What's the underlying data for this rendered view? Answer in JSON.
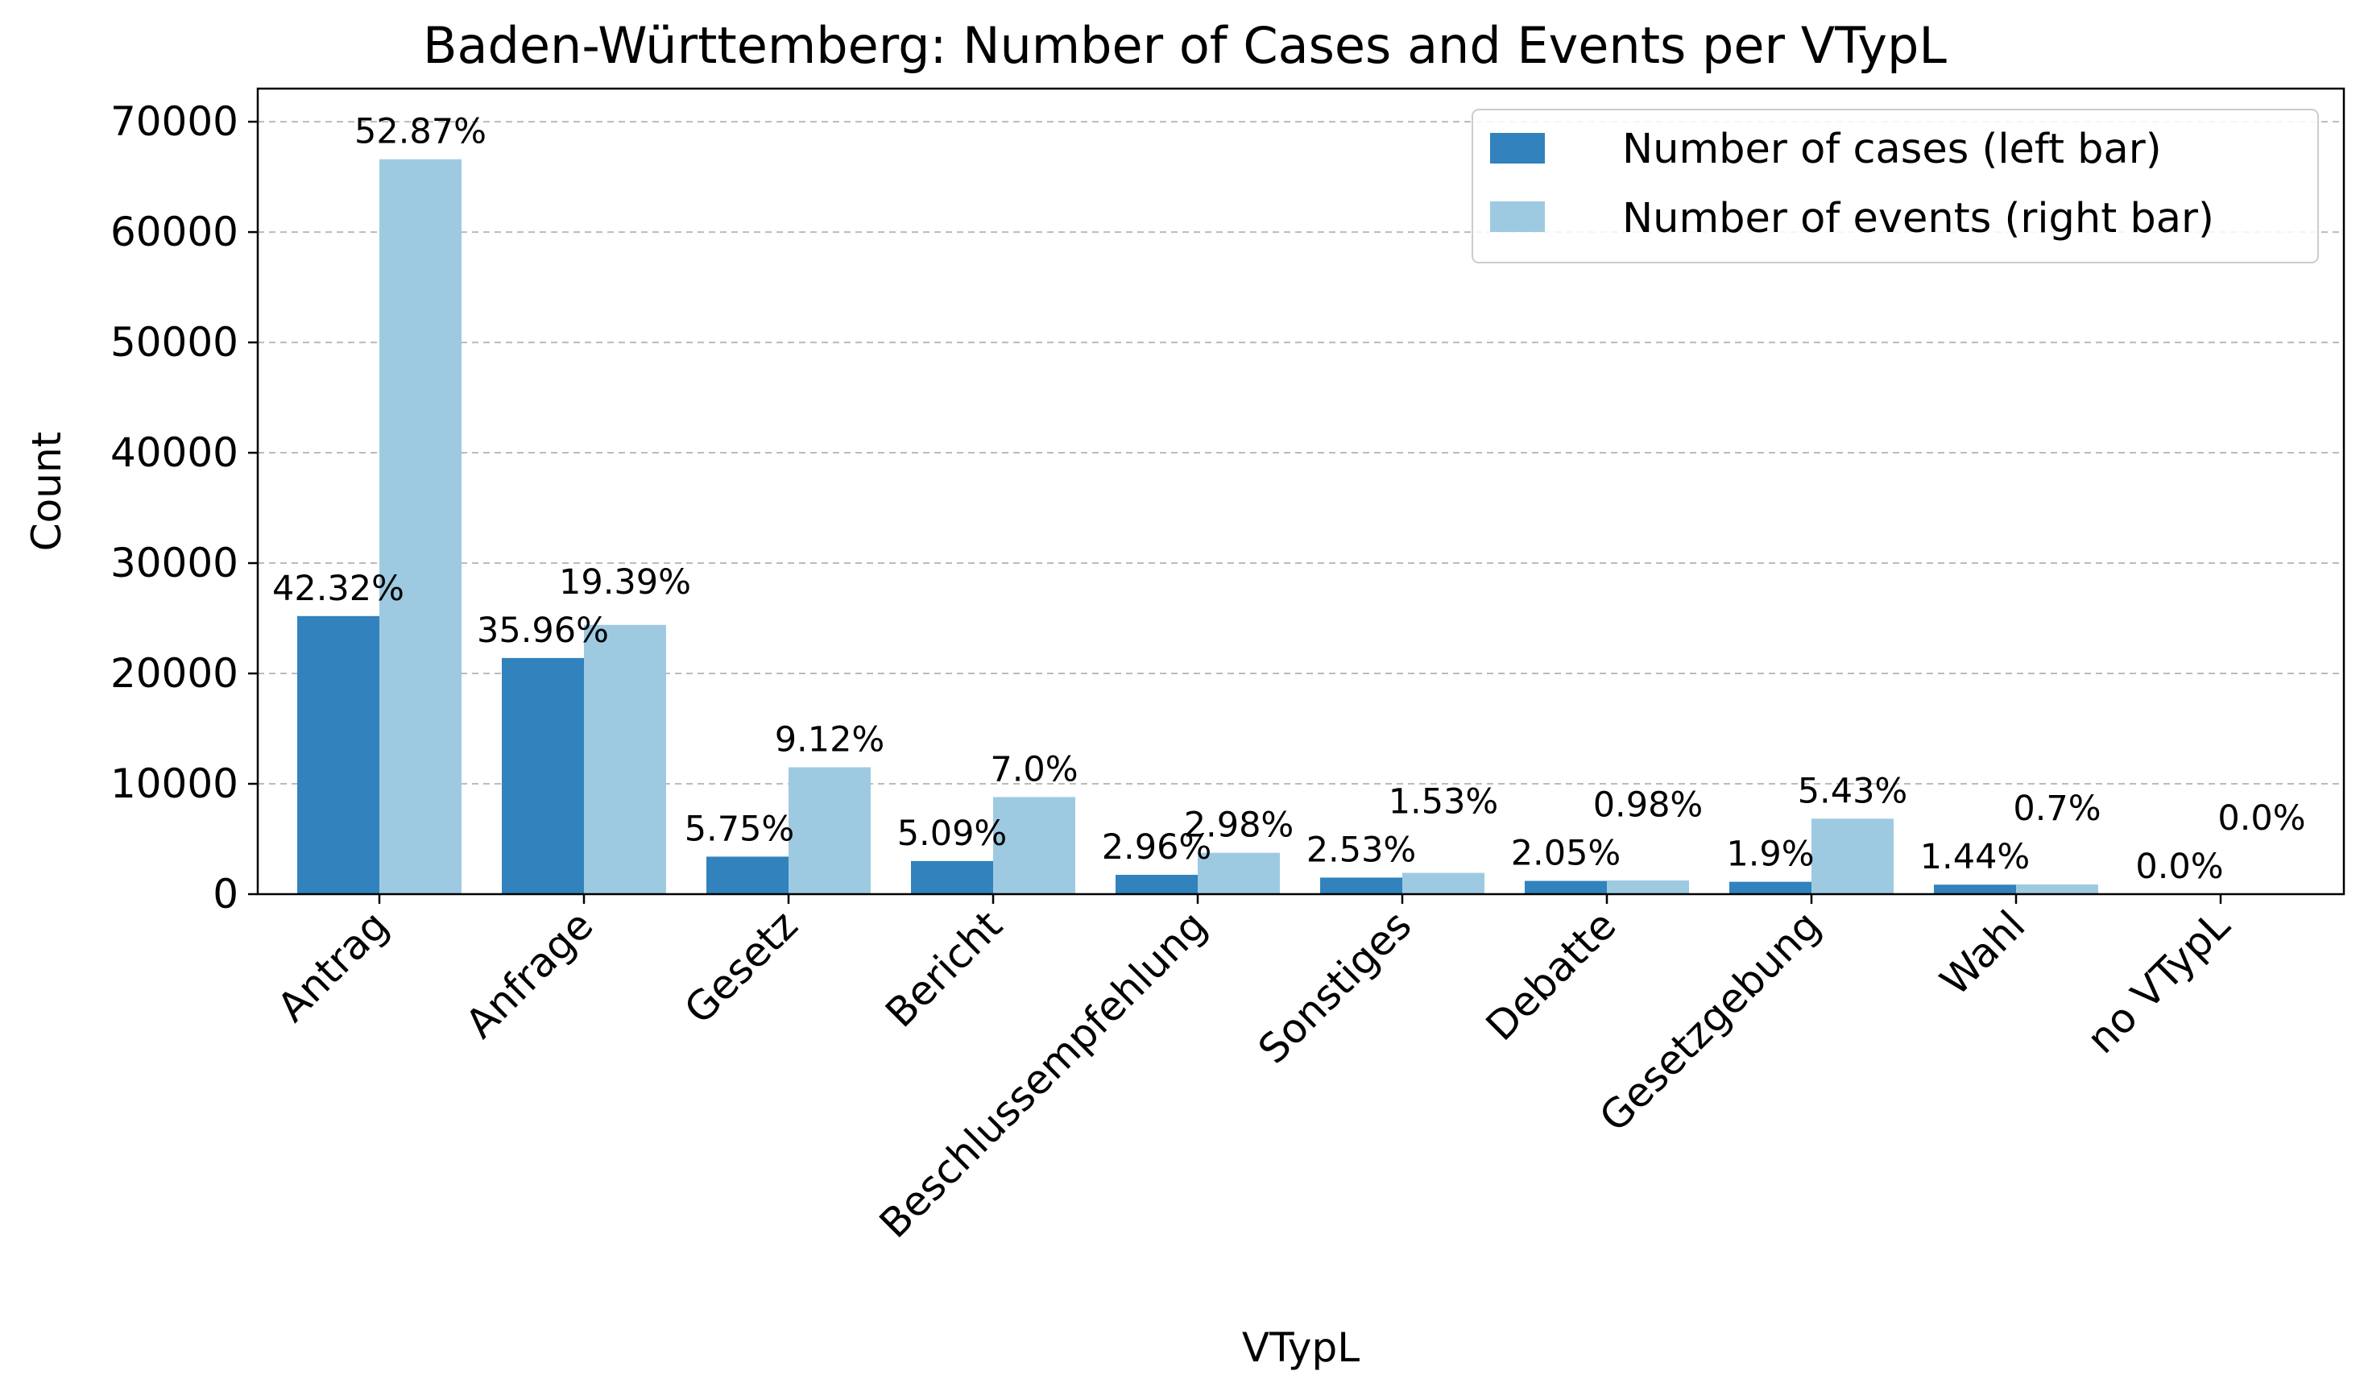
{
  "chart_data": {
    "type": "bar",
    "title": "Baden-Württemberg: Number of Cases and Events per VTypL",
    "xlabel": "VTypL",
    "ylabel": "Count",
    "ylim": [
      0,
      73000
    ],
    "yticks": [
      0,
      10000,
      20000,
      30000,
      40000,
      50000,
      60000,
      70000
    ],
    "grid": "y-dashed",
    "legend_position": "top-right",
    "categories": [
      "Antrag",
      "Anfrage",
      "Gesetz",
      "Bericht",
      "Beschlussempfehlung",
      "Sonstiges",
      "Debatte",
      "Gesetzgebung",
      "Wahl",
      "no VTypL"
    ],
    "series": [
      {
        "name": "Number of cases (left bar)",
        "color": "#3182bd",
        "values": [
          25200,
          21400,
          3400,
          3000,
          1750,
          1500,
          1200,
          1120,
          860,
          0
        ],
        "labels": [
          "42.32%",
          "35.96%",
          "5.75%",
          "5.09%",
          "2.96%",
          "2.53%",
          "2.05%",
          "1.9%",
          "1.44%",
          "0.0%"
        ]
      },
      {
        "name": "Number of events (right bar)",
        "color": "#9ecae1",
        "values": [
          66600,
          24400,
          11500,
          8800,
          3750,
          1930,
          1240,
          6840,
          880,
          0
        ],
        "labels": [
          "52.87%",
          "19.39%",
          "9.12%",
          "7.0%",
          "2.98%",
          "1.53%",
          "0.98%",
          "5.43%",
          "0.7%",
          "0.0%"
        ]
      }
    ]
  }
}
